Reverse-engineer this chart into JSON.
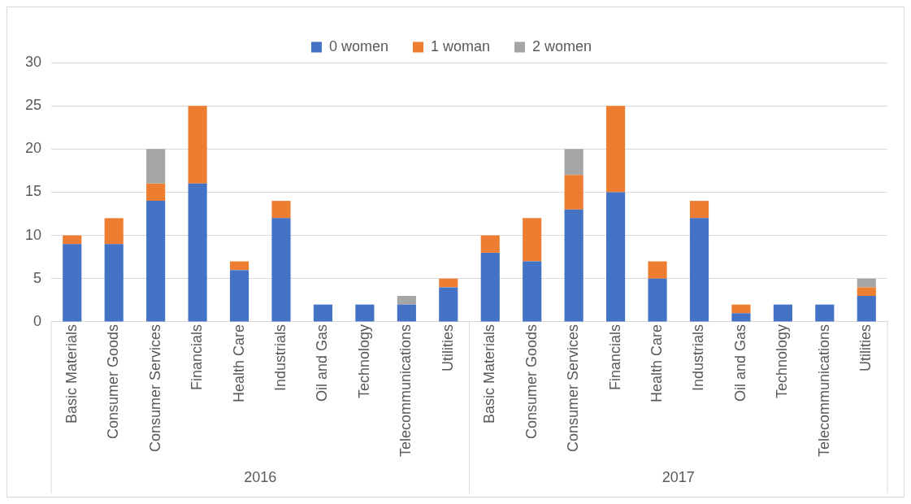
{
  "chart_data": {
    "type": "bar",
    "stacked": true,
    "categories": [
      "Basic Materials",
      "Consumer Goods",
      "Consumer Services",
      "Financials",
      "Health Care",
      "Industrials",
      "Oil and Gas",
      "Technology",
      "Telecommunications",
      "Utilities",
      "Basic Materials",
      "Consumer Goods",
      "Consumer Services",
      "Financials",
      "Health Care",
      "Industrials",
      "Oil and Gas",
      "Technology",
      "Telecommunications",
      "Utilities"
    ],
    "series": [
      {
        "name": "0 women",
        "color": "#4472c4",
        "values": [
          9,
          9,
          14,
          16,
          6,
          12,
          2,
          2,
          2,
          4,
          8,
          7,
          13,
          15,
          5,
          12,
          1,
          2,
          2,
          3
        ]
      },
      {
        "name": "1 woman",
        "color": "#ed7d31",
        "values": [
          1,
          3,
          2,
          9,
          1,
          2,
          0,
          0,
          0,
          1,
          2,
          5,
          4,
          10,
          2,
          2,
          1,
          0,
          0,
          1
        ]
      },
      {
        "name": "2 women",
        "color": "#a5a5a5",
        "values": [
          0,
          0,
          4,
          0,
          0,
          0,
          0,
          0,
          1,
          0,
          0,
          0,
          3,
          0,
          0,
          0,
          0,
          0,
          0,
          1
        ]
      }
    ],
    "annotations": [
      "2016",
      "2017"
    ],
    "ylim": [
      0,
      30
    ],
    "yticks": [
      0,
      5,
      10,
      15,
      20,
      25,
      30
    ],
    "grid": "y",
    "legend": "top"
  }
}
